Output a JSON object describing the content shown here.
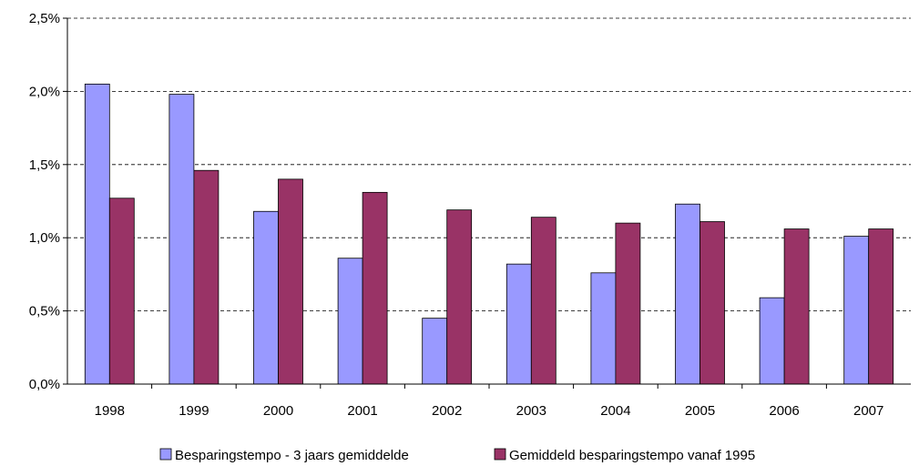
{
  "chart_data": {
    "type": "bar",
    "categories": [
      "1998",
      "1999",
      "2000",
      "2001",
      "2002",
      "2003",
      "2004",
      "2005",
      "2006",
      "2007"
    ],
    "series": [
      {
        "name": "Besparingstempo - 3 jaars gemiddelde",
        "color": "#9999ff",
        "values": [
          2.05,
          1.98,
          1.18,
          0.86,
          0.45,
          0.82,
          0.76,
          1.23,
          0.59,
          1.01
        ]
      },
      {
        "name": "Gemiddeld besparingstempo vanaf 1995",
        "color": "#993366",
        "values": [
          1.27,
          1.46,
          1.4,
          1.31,
          1.19,
          1.14,
          1.1,
          1.11,
          1.06,
          1.06
        ]
      }
    ],
    "yticks": [
      "0,0%",
      "0,5%",
      "1,0%",
      "1,5%",
      "2,0%",
      "2,5%"
    ],
    "ylim": [
      0,
      2.5
    ],
    "grid": true,
    "legend": "bottom"
  }
}
